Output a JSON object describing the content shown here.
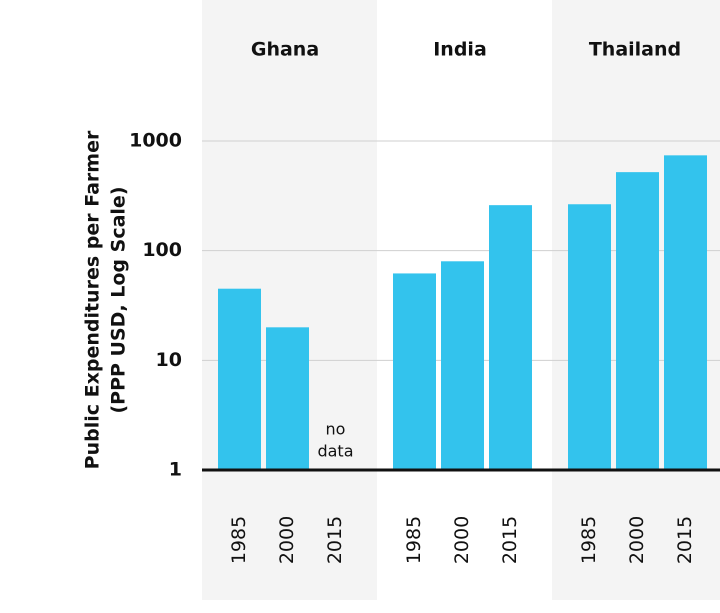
{
  "chart_data": {
    "type": "bar",
    "y_label": [
      "Public Expenditures per Farmer",
      "(PPP USD, Log Scale)"
    ],
    "categories": [
      "Ghana",
      "India",
      "Thailand"
    ],
    "series": [
      {
        "name": "1985",
        "color": "#33c3ed",
        "values": [
          45,
          62,
          265
        ]
      },
      {
        "name": "2000",
        "color": "#33c3ed",
        "values": [
          20,
          80,
          520
        ]
      },
      {
        "name": "2015",
        "color": "#33c3ed",
        "values": [
          null,
          260,
          740
        ]
      }
    ],
    "annotations": [
      {
        "lines": [
          "no",
          "data"
        ]
      }
    ],
    "log_scale": true,
    "ylim": [
      1,
      1000
    ],
    "yticks": [
      1,
      10,
      100,
      1000
    ],
    "grid": true
  }
}
